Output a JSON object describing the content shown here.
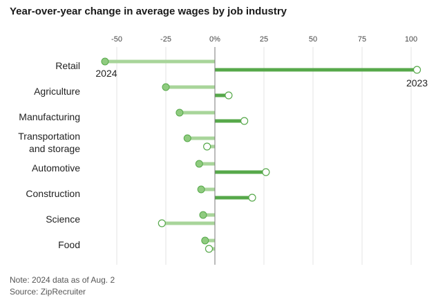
{
  "title": "Year-over-year change in average wages by job industry",
  "note": "Note: 2024 data as of Aug. 2",
  "source": "Source: ZipRecruiter",
  "colors": {
    "series_2024": "#a8d59a",
    "series_2024_marker": "#8fcb7f",
    "series_2023": "#56a84a",
    "grid": "#e3e3e3",
    "zero_line": "#777777"
  },
  "chart_data": {
    "type": "bar",
    "title": "Year-over-year change in average wages by job industry",
    "categories": [
      "Retail",
      "Agriculture",
      "Manufacturing",
      "Transportation and storage",
      "Automotive",
      "Construction",
      "Science",
      "Food"
    ],
    "category_label_lines": [
      [
        "Retail"
      ],
      [
        "Agriculture"
      ],
      [
        "Manufacturing"
      ],
      [
        "Transportation",
        "and storage"
      ],
      [
        "Automotive"
      ],
      [
        "Construction"
      ],
      [
        "Science"
      ],
      [
        "Food"
      ]
    ],
    "series": [
      {
        "name": "2024",
        "values": [
          -56,
          -25,
          -18,
          -14,
          -8,
          -7,
          -6,
          -5
        ]
      },
      {
        "name": "2023",
        "values": [
          103,
          7,
          15,
          -4,
          26,
          19,
          -27,
          -3
        ]
      }
    ],
    "x_ticks": [
      -50,
      -25,
      0,
      25,
      50,
      75,
      100
    ],
    "x_tick_labels": [
      "-50",
      "-25",
      "0%",
      "25",
      "50",
      "75",
      "100"
    ],
    "xlim": [
      -60,
      104
    ],
    "grid": true,
    "annotations": [
      {
        "text": "2024",
        "series": "2024",
        "category": "Retail"
      },
      {
        "text": "2023",
        "series": "2023",
        "category": "Retail"
      }
    ]
  }
}
